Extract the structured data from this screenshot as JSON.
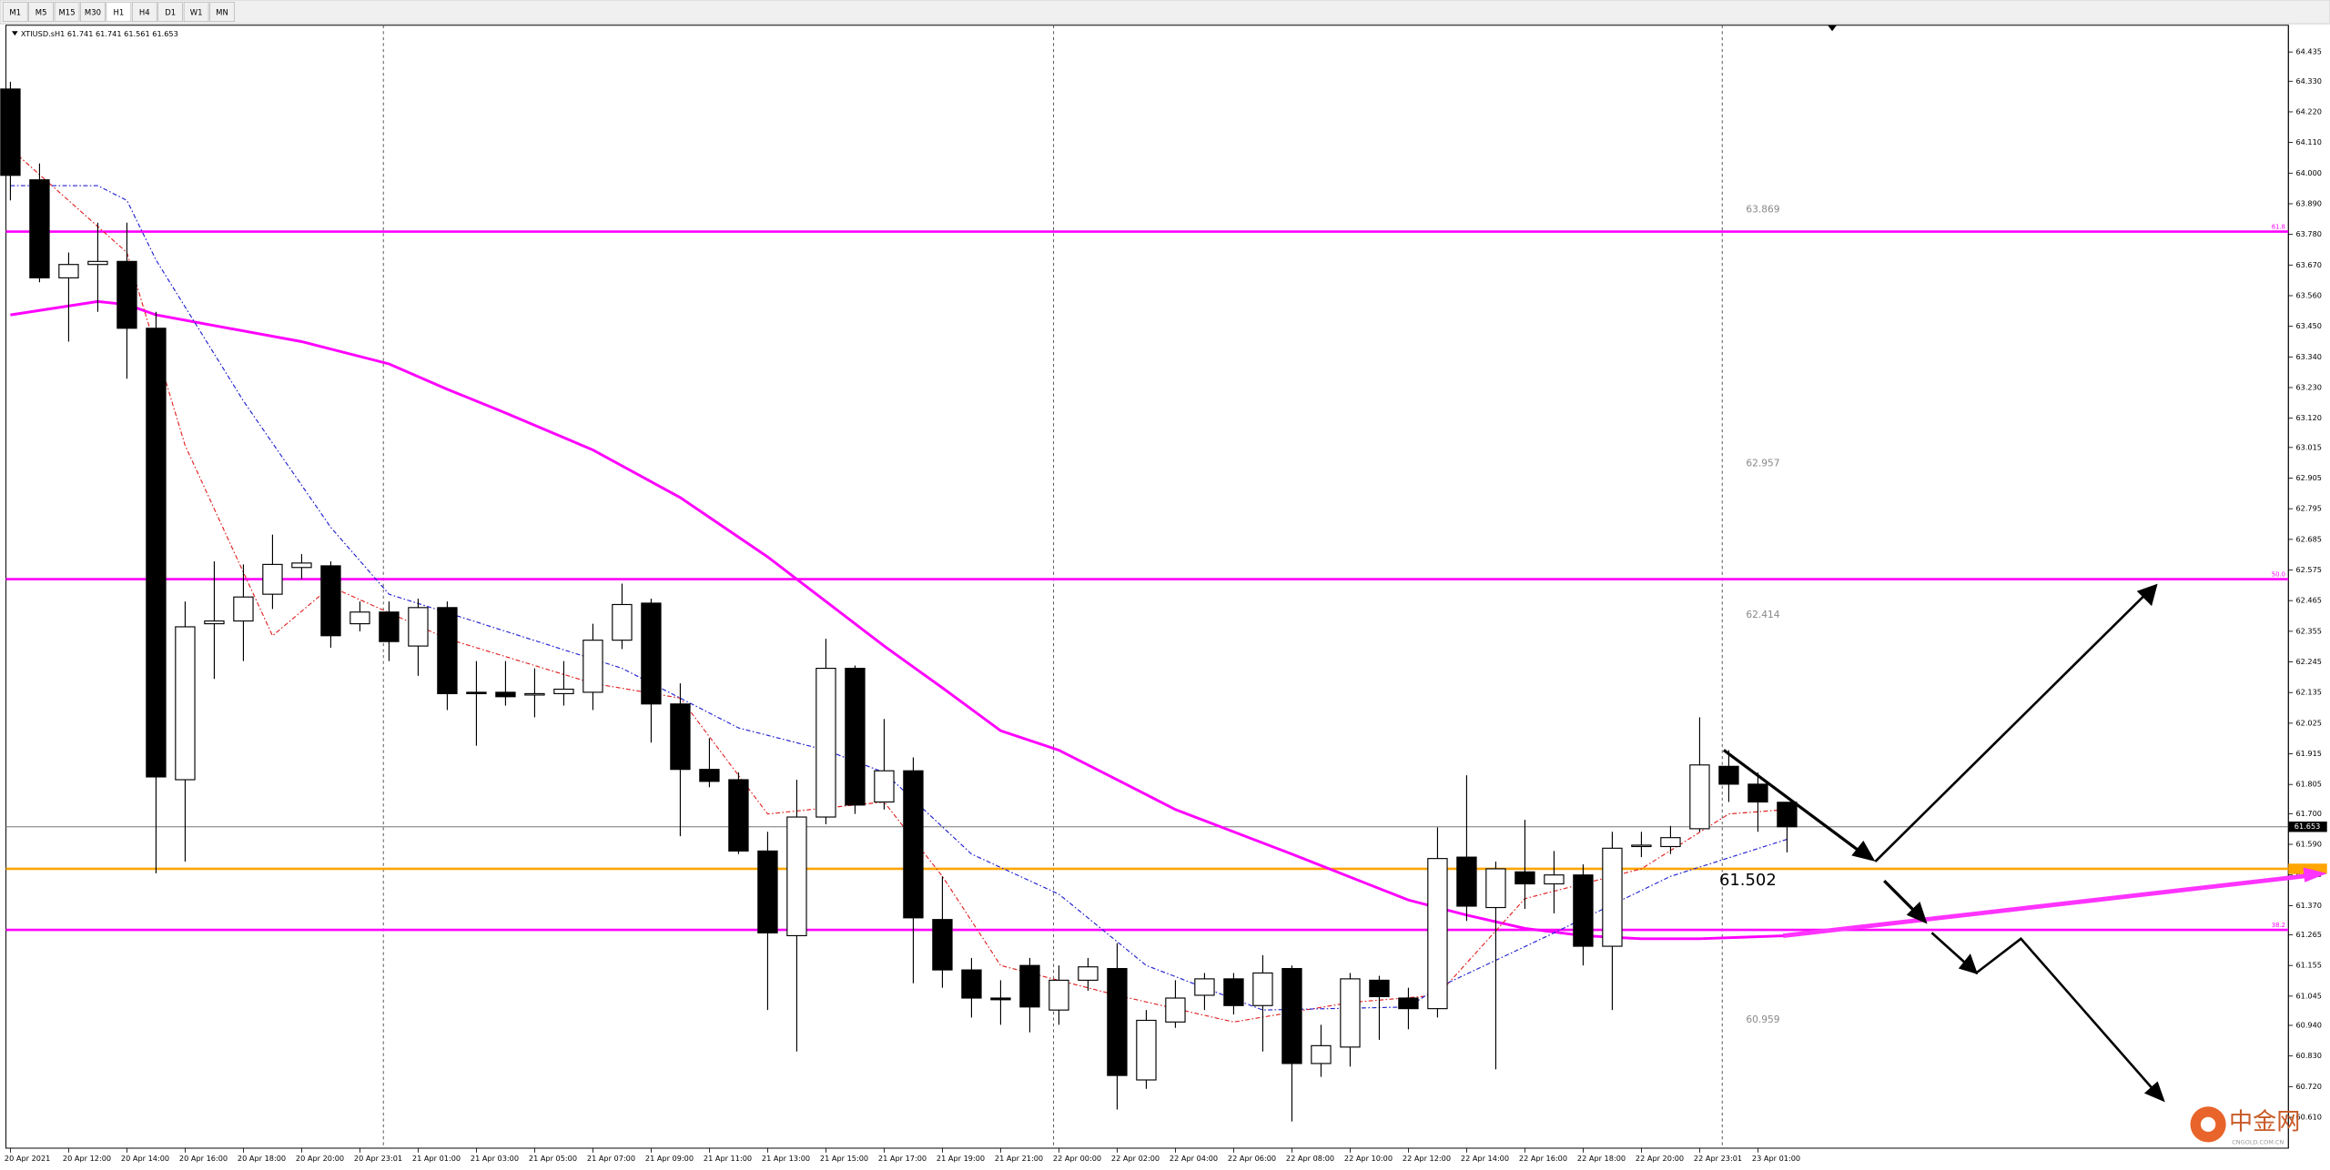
{
  "toolbar": [
    "M1",
    "M5",
    "M15",
    "M30",
    "H1",
    "H4",
    "D1",
    "W1",
    "MN"
  ],
  "chart_data": {
    "type": "candlestick",
    "title": "XTIUSD.sH1  61.741 61.741 61.561 61.653",
    "open": [
      64.302,
      63.976,
      63.624,
      63.672,
      63.683,
      63.443,
      61.822,
      62.382,
      62.392,
      62.488,
      62.584,
      62.59,
      62.382,
      62.424,
      62.302,
      62.44,
      62.136,
      62.136,
      62.126,
      62.131,
      62.136,
      62.323,
      62.456,
      62.094,
      61.859,
      61.822,
      61.566,
      61.262,
      61.688,
      62.222,
      61.742,
      61.854,
      61.32,
      61.139,
      61.038,
      61.155,
      60.995,
      61.102,
      61.144,
      60.744,
      60.952,
      61.048,
      61.107,
      61.011,
      61.144,
      60.803,
      60.862,
      61.102,
      61.038,
      61.0,
      61.544,
      61.363,
      61.491,
      61.448,
      61.48,
      61.224,
      61.582,
      61.582,
      61.646,
      61.87,
      61.806,
      61.741
    ],
    "high": [
      64.328,
      64.035,
      63.715,
      63.822,
      63.822,
      63.502,
      62.462,
      62.606,
      62.595,
      62.702,
      62.632,
      62.606,
      62.462,
      62.462,
      62.472,
      62.462,
      62.248,
      62.248,
      62.222,
      62.248,
      62.382,
      62.526,
      62.472,
      62.168,
      61.971,
      61.848,
      61.635,
      61.822,
      62.328,
      62.232,
      62.04,
      61.902,
      61.475,
      61.182,
      61.102,
      61.182,
      61.155,
      61.182,
      61.235,
      60.995,
      61.102,
      61.128,
      61.128,
      61.192,
      61.155,
      60.942,
      61.128,
      61.118,
      61.075,
      61.651,
      61.838,
      61.528,
      61.678,
      61.566,
      61.518,
      61.635,
      61.635,
      61.656,
      62.046,
      61.928,
      61.848,
      61.741
    ],
    "low": [
      63.902,
      63.608,
      63.395,
      63.502,
      63.262,
      61.486,
      61.528,
      62.184,
      62.248,
      62.435,
      62.542,
      62.296,
      62.355,
      62.248,
      62.195,
      62.072,
      61.944,
      62.088,
      62.046,
      62.088,
      62.072,
      62.291,
      61.955,
      61.619,
      61.795,
      61.555,
      60.995,
      60.846,
      61.662,
      61.699,
      61.715,
      61.091,
      61.075,
      60.968,
      60.942,
      60.915,
      60.942,
      61.064,
      60.638,
      60.712,
      60.931,
      60.995,
      60.979,
      60.846,
      60.595,
      60.755,
      60.792,
      60.888,
      60.926,
      60.968,
      61.315,
      60.782,
      61.358,
      61.342,
      61.155,
      60.995,
      61.544,
      61.555,
      61.635,
      61.742,
      61.635,
      61.561
    ],
    "close": [
      63.992,
      63.624,
      63.672,
      63.683,
      63.443,
      61.832,
      62.371,
      62.392,
      62.478,
      62.595,
      62.6,
      62.339,
      62.424,
      62.318,
      62.44,
      62.131,
      62.131,
      62.12,
      62.131,
      62.147,
      62.323,
      62.451,
      62.094,
      61.859,
      61.816,
      61.566,
      61.272,
      61.688,
      62.222,
      61.731,
      61.854,
      61.326,
      61.139,
      61.038,
      61.032,
      61.006,
      61.102,
      61.15,
      60.76,
      60.958,
      61.038,
      61.107,
      61.011,
      61.128,
      60.803,
      60.867,
      61.107,
      61.043,
      61.0,
      61.539,
      61.368,
      61.502,
      61.448,
      61.48,
      61.224,
      61.576,
      61.587,
      61.614,
      61.875,
      61.806,
      61.742,
      61.653
    ],
    "xticks": [
      {
        "value": 0,
        "label": "20 Apr 2021"
      },
      {
        "value": 2,
        "label": "20 Apr 12:00"
      },
      {
        "value": 4,
        "label": "20 Apr 14:00"
      },
      {
        "value": 6,
        "label": "20 Apr 16:00"
      },
      {
        "value": 8,
        "label": "20 Apr 18:00"
      },
      {
        "value": 10,
        "label": "20 Apr 20:00"
      },
      {
        "value": 12,
        "label": "20 Apr 23:01"
      },
      {
        "value": 14,
        "label": "21 Apr 01:00"
      },
      {
        "value": 16,
        "label": "21 Apr 03:00"
      },
      {
        "value": 18,
        "label": "21 Apr 05:00"
      },
      {
        "value": 20,
        "label": "21 Apr 07:00"
      },
      {
        "value": 22,
        "label": "21 Apr 09:00"
      },
      {
        "value": 24,
        "label": "21 Apr 11:00"
      },
      {
        "value": 26,
        "label": "21 Apr 13:00"
      },
      {
        "value": 28,
        "label": "21 Apr 15:00"
      },
      {
        "value": 30,
        "label": "21 Apr 17:00"
      },
      {
        "value": 32,
        "label": "21 Apr 19:00"
      },
      {
        "value": 34,
        "label": "21 Apr 21:00"
      },
      {
        "value": 36,
        "label": "22 Apr 00:00"
      },
      {
        "value": 38,
        "label": "22 Apr 02:00"
      },
      {
        "value": 40,
        "label": "22 Apr 04:00"
      },
      {
        "value": 42,
        "label": "22 Apr 06:00"
      },
      {
        "value": 44,
        "label": "22 Apr 08:00"
      },
      {
        "value": 46,
        "label": "22 Apr 10:00"
      },
      {
        "value": 48,
        "label": "22 Apr 12:00"
      },
      {
        "value": 50,
        "label": "22 Apr 14:00"
      },
      {
        "value": 52,
        "label": "22 Apr 16:00"
      },
      {
        "value": 54,
        "label": "22 Apr 18:00"
      },
      {
        "value": 56,
        "label": "22 Apr 20:00"
      },
      {
        "value": 58,
        "label": "22 Apr 23:01"
      },
      {
        "value": 60,
        "label": "23 Apr 01:00"
      }
    ],
    "ylim": [
      60.499,
      64.531
    ],
    "yticks": [
      64.435,
      {
        "value": 64.33,
        "label": "64.330"
      },
      {
        "value": 64.22,
        "label": "64.220"
      },
      {
        "value": 64.11,
        "label": "64.110"
      },
      {
        "value": 64,
        "label": "64.000"
      },
      {
        "value": 63.89,
        "label": "63.890"
      },
      {
        "value": 63.78,
        "label": "63.780"
      },
      {
        "value": 63.67,
        "label": "63.670"
      },
      {
        "value": 63.56,
        "label": "63.560"
      },
      {
        "value": 63.45,
        "label": "63.450"
      },
      {
        "value": 63.34,
        "label": "63.340"
      },
      {
        "value": 63.23,
        "label": "63.230"
      },
      {
        "value": 63.12,
        "label": "63.120"
      },
      63.015,
      62.905,
      62.795,
      62.685,
      62.575,
      62.465,
      62.355,
      62.245,
      62.135,
      62.025,
      61.915,
      61.805,
      {
        "value": 61.7,
        "label": "61.700"
      },
      {
        "value": 61.59,
        "label": "61.590"
      },
      {
        "value": 61.48,
        "label": "61.480"
      },
      {
        "value": 61.37,
        "label": "61.370"
      },
      61.265,
      61.155,
      61.045,
      {
        "value": 60.94,
        "label": "60.940"
      },
      {
        "value": 60.83,
        "label": "60.830"
      },
      {
        "value": 60.72,
        "label": "60.720"
      },
      {
        "value": 60.61,
        "label": "60.610"
      }
    ],
    "series": [
      {
        "color": "#ff00ff",
        "x": [
          0,
          3,
          4,
          5,
          10,
          13,
          15,
          17,
          20,
          23,
          26,
          28,
          30,
          32,
          34,
          36,
          38,
          40,
          44,
          48,
          50,
          52,
          54,
          56,
          58,
          61
        ],
        "values": [
          63.491,
          63.539,
          63.528,
          63.491,
          63.395,
          63.315,
          63.224,
          63.139,
          63.006,
          62.835,
          62.622,
          62.462,
          62.302,
          62.152,
          61.998,
          61.928,
          61.822,
          61.715,
          61.555,
          61.39,
          61.336,
          61.288,
          61.262,
          61.251,
          61.251,
          61.262
        ]
      },
      {
        "color": "#e02020",
        "dashed": true,
        "x": [
          0,
          4,
          6,
          9,
          11,
          15,
          20,
          23,
          26,
          30,
          32,
          34,
          38,
          42,
          46,
          49,
          52,
          56,
          59,
          61
        ],
        "values": [
          64.088,
          63.715,
          63.022,
          62.339,
          62.515,
          62.328,
          62.168,
          62.115,
          61.699,
          61.742,
          61.475,
          61.155,
          61.048,
          60.952,
          61.022,
          61.048,
          61.395,
          61.502,
          61.699,
          61.715
        ]
      },
      {
        "color": "#2020d0",
        "dashed": true,
        "x": [
          0,
          3,
          4,
          5,
          8,
          11,
          13,
          17,
          21,
          25,
          28,
          30,
          33,
          36,
          39,
          43,
          48,
          49,
          53,
          57,
          61
        ],
        "values": [
          63.955,
          63.955,
          63.902,
          63.688,
          63.182,
          62.728,
          62.488,
          62.355,
          62.222,
          62.008,
          61.928,
          61.848,
          61.555,
          61.411,
          61.155,
          60.995,
          61.006,
          61.075,
          61.272,
          61.475,
          61.608
        ]
      }
    ],
    "hlines": [
      {
        "value": 63.79,
        "color": "#ff00ff",
        "label": "61.8"
      },
      {
        "value": 62.542,
        "color": "#ff00ff",
        "label": "50.0"
      },
      {
        "value": 61.283,
        "color": "#ff00ff",
        "label": "38.2"
      },
      {
        "value": 61.502,
        "color": "#ffa500"
      }
    ],
    "level_labels": [
      63.869,
      62.957,
      62.414,
      60.959
    ],
    "target_label": 61.502
  },
  "watermark": {
    "text": "中金网",
    "sub": "CNGOLD.COM.CN"
  }
}
